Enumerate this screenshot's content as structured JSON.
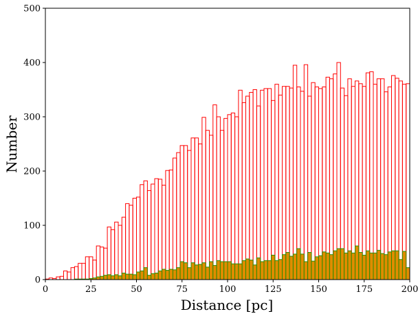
{
  "chart_data": {
    "type": "bar",
    "title": "",
    "xlabel": "Distance [pc]",
    "ylabel": "Number",
    "xlim": [
      0,
      200
    ],
    "ylim": [
      0,
      500
    ],
    "xticks": [
      0,
      25,
      50,
      75,
      100,
      125,
      150,
      175,
      200
    ],
    "yticks": [
      0,
      100,
      200,
      300,
      400,
      500
    ],
    "grid": false,
    "legend": "none",
    "bin_width": 2,
    "bin_starts": [
      0,
      2,
      4,
      6,
      8,
      10,
      12,
      14,
      16,
      18,
      20,
      22,
      24,
      26,
      28,
      30,
      32,
      34,
      36,
      38,
      40,
      42,
      44,
      46,
      48,
      50,
      52,
      54,
      56,
      58,
      60,
      62,
      64,
      66,
      68,
      70,
      72,
      74,
      76,
      78,
      80,
      82,
      84,
      86,
      88,
      90,
      92,
      94,
      96,
      98,
      100,
      102,
      104,
      106,
      108,
      110,
      112,
      114,
      116,
      118,
      120,
      122,
      124,
      126,
      128,
      130,
      132,
      134,
      136,
      138,
      140,
      142,
      144,
      146,
      148,
      150,
      152,
      154,
      156,
      158,
      160,
      162,
      164,
      166,
      168,
      170,
      172,
      174,
      176,
      178,
      180,
      182,
      184,
      186,
      188,
      190,
      192,
      194,
      196,
      198
    ],
    "series": [
      {
        "style": "step-outline",
        "color": "#ff0000",
        "values": [
          1,
          3,
          2,
          5,
          6,
          16,
          14,
          22,
          24,
          30,
          30,
          42,
          42,
          36,
          62,
          60,
          58,
          97,
          92,
          106,
          100,
          115,
          140,
          137,
          150,
          152,
          175,
          182,
          164,
          176,
          186,
          185,
          174,
          201,
          202,
          224,
          234,
          247,
          247,
          238,
          261,
          261,
          250,
          299,
          275,
          266,
          322,
          300,
          275,
          297,
          304,
          307,
          300,
          349,
          326,
          338,
          345,
          350,
          320,
          349,
          352,
          352,
          330,
          360,
          340,
          356,
          356,
          353,
          395,
          355,
          347,
          396,
          338,
          363,
          355,
          352,
          355,
          373,
          370,
          379,
          400,
          353,
          339,
          370,
          356,
          366,
          361,
          356,
          381,
          383,
          360,
          370,
          370,
          346,
          355,
          376,
          371,
          366,
          360,
          361
        ]
      },
      {
        "style": "filled",
        "fill": "#e08c00",
        "edge": "#2e8b00",
        "values": [
          0,
          0,
          0,
          0,
          0,
          0,
          0,
          0,
          1,
          1,
          1,
          1,
          2,
          3,
          5,
          6,
          8,
          9,
          7,
          9,
          7,
          12,
          10,
          10,
          9,
          14,
          16,
          22,
          8,
          11,
          12,
          16,
          19,
          17,
          19,
          18,
          22,
          33,
          31,
          22,
          31,
          27,
          28,
          31,
          23,
          33,
          26,
          35,
          33,
          33,
          33,
          29,
          29,
          29,
          35,
          38,
          36,
          27,
          40,
          33,
          35,
          35,
          45,
          35,
          37,
          46,
          50,
          43,
          47,
          57,
          47,
          33,
          50,
          34,
          42,
          44,
          51,
          49,
          46,
          53,
          57,
          57,
          49,
          53,
          49,
          62,
          50,
          45,
          53,
          49,
          49,
          54,
          48,
          46,
          51,
          53,
          53,
          37,
          52,
          22
        ]
      }
    ]
  }
}
